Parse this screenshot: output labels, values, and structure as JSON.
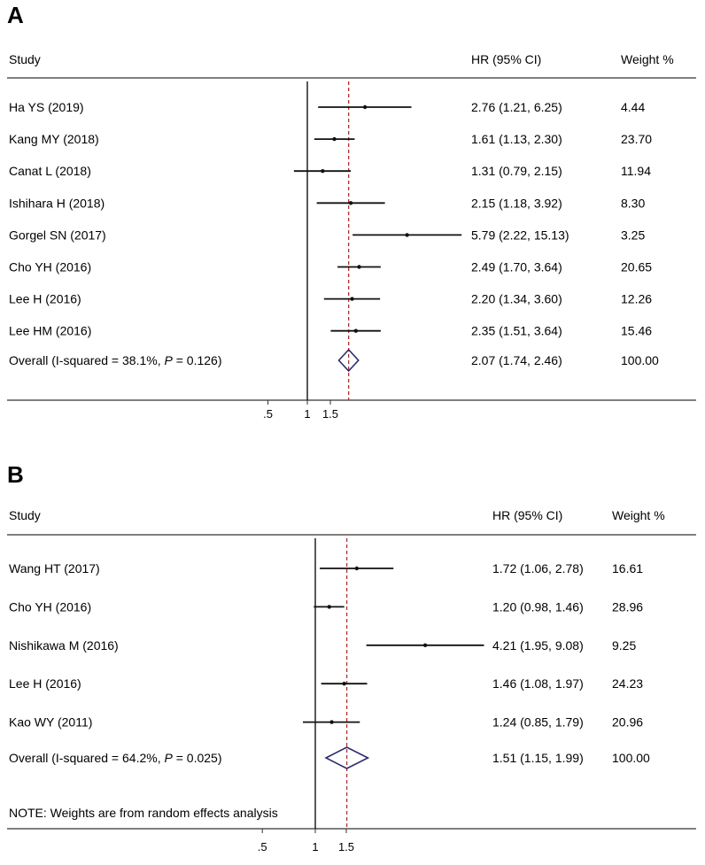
{
  "figure": {
    "panels": [
      {
        "id": "A",
        "panel_label": "A",
        "header": {
          "study": "Study",
          "hr": "HR (95% CI)",
          "weight": "Weight %"
        },
        "note": ""
      },
      {
        "id": "B",
        "panel_label": "B",
        "header": {
          "study": "Study",
          "hr": "HR (95% CI)",
          "weight": "Weight %"
        },
        "note": "NOTE: Weights are from random effects analysis"
      }
    ]
  },
  "chart_data": [
    {
      "type": "forest",
      "panel": "A",
      "xaxis": {
        "scale": "log",
        "ticks": [
          0.5,
          1,
          1.5
        ],
        "tick_labels": [
          ".5",
          "1",
          "1.5"
        ],
        "reference_line": 1,
        "pooled_line": 2.07
      },
      "studies": [
        {
          "label": "Ha YS (2019)",
          "hr": 2.76,
          "lo": 1.21,
          "hi": 6.25,
          "ci_text": "2.76 (1.21, 6.25)",
          "weight": "4.44"
        },
        {
          "label": "Kang MY (2018)",
          "hr": 1.61,
          "lo": 1.13,
          "hi": 2.3,
          "ci_text": "1.61 (1.13, 2.30)",
          "weight": "23.70"
        },
        {
          "label": "Canat L (2018)",
          "hr": 1.31,
          "lo": 0.79,
          "hi": 2.15,
          "ci_text": "1.31 (0.79, 2.15)",
          "weight": "11.94"
        },
        {
          "label": "Ishihara H (2018)",
          "hr": 2.15,
          "lo": 1.18,
          "hi": 3.92,
          "ci_text": "2.15 (1.18, 3.92)",
          "weight": "8.30"
        },
        {
          "label": "Gorgel SN (2017)",
          "hr": 5.79,
          "lo": 2.22,
          "hi": 15.13,
          "ci_text": "5.79 (2.22, 15.13)",
          "weight": "3.25"
        },
        {
          "label": "Cho YH (2016)",
          "hr": 2.49,
          "lo": 1.7,
          "hi": 3.64,
          "ci_text": "2.49 (1.70, 3.64)",
          "weight": "20.65"
        },
        {
          "label": "Lee H (2016)",
          "hr": 2.2,
          "lo": 1.34,
          "hi": 3.6,
          "ci_text": "2.20 (1.34, 3.60)",
          "weight": "12.26"
        },
        {
          "label": "Lee HM (2016)",
          "hr": 2.35,
          "lo": 1.51,
          "hi": 3.64,
          "ci_text": "2.35 (1.51, 3.64)",
          "weight": "15.46"
        }
      ],
      "overall": {
        "label_prefix": "Overall  (I-squared = 38.1%, ",
        "p_symbol": "P",
        "label_suffix": " = 0.126)",
        "hr": 2.07,
        "lo": 1.74,
        "hi": 2.46,
        "ci_text": "2.07 (1.74, 2.46)",
        "weight": "100.00"
      }
    },
    {
      "type": "forest",
      "panel": "B",
      "xaxis": {
        "scale": "log",
        "ticks": [
          0.5,
          1,
          1.5
        ],
        "tick_labels": [
          ".5",
          "1",
          "1.5"
        ],
        "reference_line": 1,
        "pooled_line": 1.51
      },
      "studies": [
        {
          "label": "Wang HT (2017)",
          "hr": 1.72,
          "lo": 1.06,
          "hi": 2.78,
          "ci_text": "1.72 (1.06, 2.78)",
          "weight": "16.61"
        },
        {
          "label": "Cho YH (2016)",
          "hr": 1.2,
          "lo": 0.98,
          "hi": 1.46,
          "ci_text": "1.20 (0.98, 1.46)",
          "weight": "28.96"
        },
        {
          "label": "Nishikawa M (2016)",
          "hr": 4.21,
          "lo": 1.95,
          "hi": 9.08,
          "ci_text": "4.21 (1.95, 9.08)",
          "weight": "9.25"
        },
        {
          "label": "Lee H (2016)",
          "hr": 1.46,
          "lo": 1.08,
          "hi": 1.97,
          "ci_text": "1.46 (1.08, 1.97)",
          "weight": "24.23"
        },
        {
          "label": "Kao WY (2011)",
          "hr": 1.24,
          "lo": 0.85,
          "hi": 1.79,
          "ci_text": "1.24 (0.85, 1.79)",
          "weight": "20.96"
        }
      ],
      "overall": {
        "label_prefix": "Overall  (I-squared = 64.2%, ",
        "p_symbol": "P",
        "label_suffix": " = 0.025)",
        "hr": 1.51,
        "lo": 1.15,
        "hi": 1.99,
        "ci_text": "1.51 (1.15, 1.99)",
        "weight": "100.00"
      }
    }
  ]
}
